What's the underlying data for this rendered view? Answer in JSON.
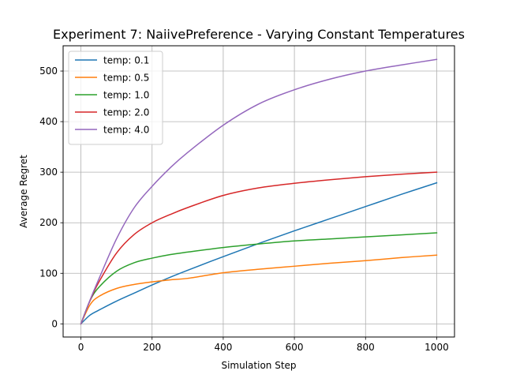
{
  "chart_data": {
    "type": "line",
    "title": "Experiment 7: NaiivePreference - Varying Constant Temperatures",
    "xlabel": "Simulation Step",
    "ylabel": "Average Regret",
    "xlim": [
      -50,
      1050
    ],
    "ylim": [
      -26,
      550
    ],
    "xticks": [
      0,
      200,
      400,
      600,
      800,
      1000
    ],
    "yticks": [
      0,
      100,
      200,
      300,
      400,
      500
    ],
    "grid": true,
    "legend_position": "upper-left",
    "x": [
      0,
      25,
      50,
      100,
      150,
      200,
      250,
      300,
      400,
      500,
      600,
      700,
      800,
      900,
      1000
    ],
    "series": [
      {
        "name": "temp: 0.1",
        "color": "#1f77b4",
        "values": [
          0,
          17,
          27,
          45,
          61,
          77,
          92,
          106,
          133,
          159,
          184,
          208,
          232,
          256,
          279
        ]
      },
      {
        "name": "temp: 0.5",
        "color": "#ff7f0e",
        "values": [
          0,
          37,
          54,
          70,
          78,
          83,
          87,
          90,
          101,
          108,
          114,
          120,
          125,
          131,
          136
        ]
      },
      {
        "name": "temp: 1.0",
        "color": "#2ca02c",
        "values": [
          0,
          45,
          72,
          104,
          121,
          130,
          137,
          142,
          151,
          158,
          164,
          168,
          172,
          176,
          180
        ]
      },
      {
        "name": "temp: 2.0",
        "color": "#d62728",
        "values": [
          0,
          45,
          82,
          140,
          177,
          200,
          216,
          230,
          254,
          269,
          278,
          285,
          291,
          296,
          300
        ]
      },
      {
        "name": "temp: 4.0",
        "color": "#9467bd",
        "values": [
          0,
          46,
          88,
          168,
          230,
          272,
          308,
          339,
          393,
          435,
          463,
          484,
          500,
          512,
          523
        ]
      }
    ]
  }
}
